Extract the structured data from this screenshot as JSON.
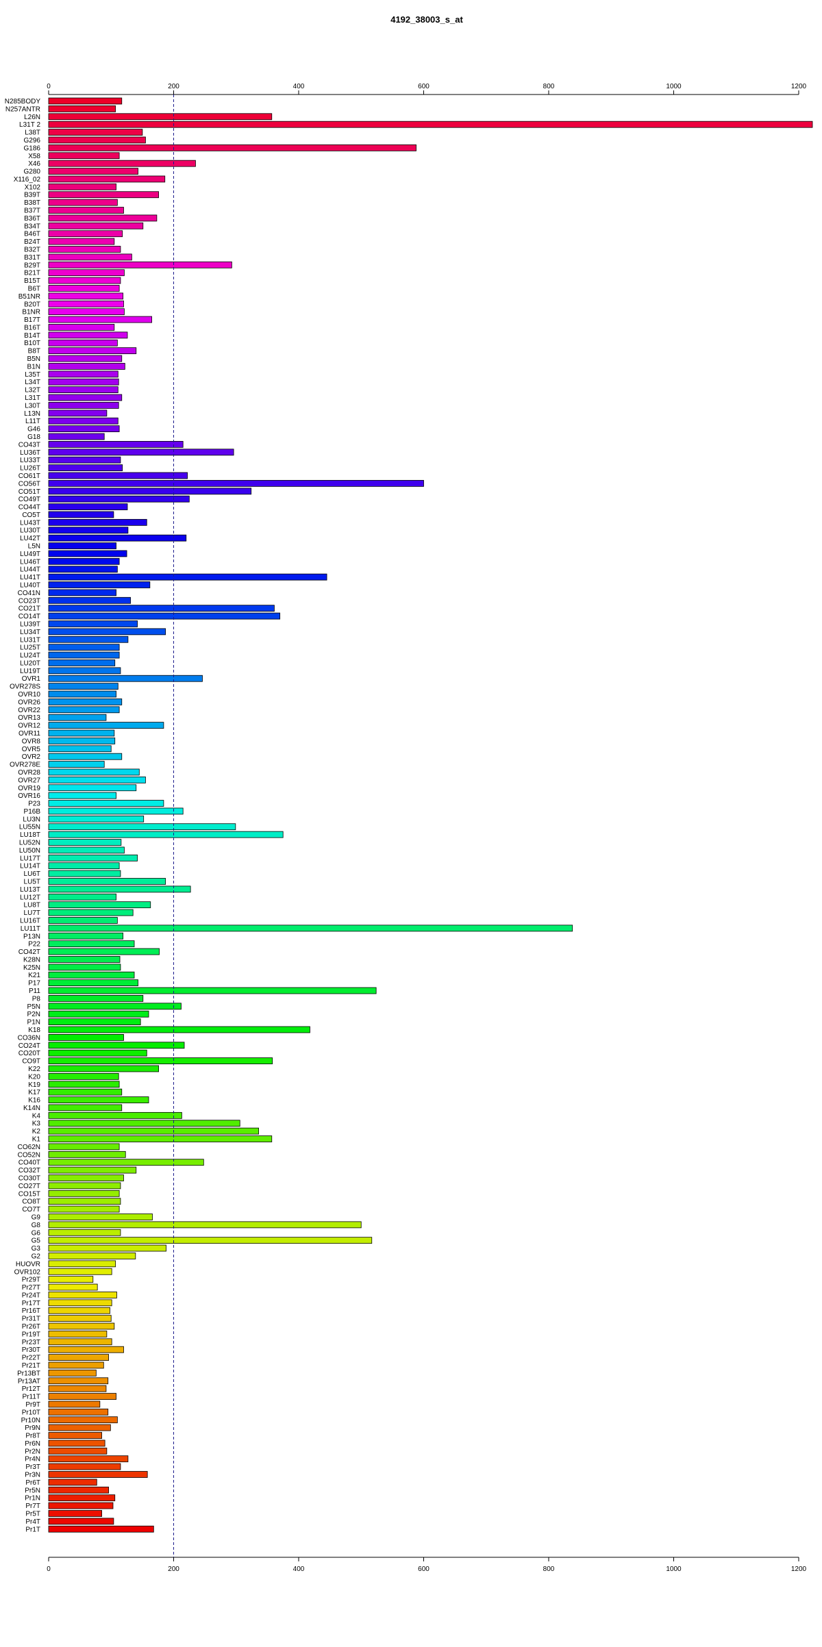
{
  "chart_data": {
    "type": "bar",
    "orientation": "horizontal",
    "title": "4192_38003_s_at",
    "xlabel": "",
    "ylabel": "",
    "xlim": [
      0,
      1200
    ],
    "xticks": [
      "0",
      "200",
      "400",
      "600",
      "800",
      "1000",
      "1200"
    ],
    "reference_line": 200,
    "grid": false,
    "legend": false,
    "color_scheme": "rainbow",
    "categories": [
      "N285BODY",
      "N257ANTR",
      "L26N",
      "L31T 2",
      "L38T",
      "G296",
      "G186",
      "X58",
      "X46",
      "G280",
      "X116_02",
      "X102",
      "B39T",
      "B38T",
      "B37T",
      "B36T",
      "B34T",
      "B46T",
      "B24T",
      "B32T",
      "B31T",
      "B29T",
      "B21T",
      "B15T",
      "B6T",
      "B51NR",
      "B20T",
      "B1NR",
      "B17T",
      "B16T",
      "B14T",
      "B10T",
      "B8T",
      "B5N",
      "B1N",
      "L35T",
      "L34T",
      "L32T",
      "L31T",
      "L30T",
      "L13N",
      "L11T",
      "G46",
      "G18",
      "CO43T",
      "LU36T",
      "LU33T",
      "LU26T",
      "CO61T",
      "CO56T",
      "CO51T",
      "CO49T",
      "CO44T",
      "CO5T",
      "LU43T",
      "LU30T",
      "LU42T",
      "L5N",
      "LU49T",
      "LU46T",
      "LU44T",
      "LU41T",
      "LU40T",
      "CO41N",
      "CO23T",
      "CO21T",
      "CO14T",
      "LU39T",
      "LU34T",
      "LU31T",
      "LU25T",
      "LU24T",
      "LU20T",
      "LU19T",
      "OVR1",
      "OVR278S",
      "OVR10",
      "OVR26",
      "OVR22",
      "OVR13",
      "OVR12",
      "OVR11",
      "OVR8",
      "OVR5",
      "OVR2",
      "OVR278E",
      "OVR28",
      "OVR27",
      "OVR19",
      "OVR16",
      "P23",
      "P16B",
      "LU3N",
      "LU55N",
      "LU18T",
      "LU52N",
      "LU50N",
      "LU17T",
      "LU14T",
      "LU6T",
      "LU5T",
      "LU13T",
      "LU12T",
      "LU8T",
      "LU7T",
      "LU16T",
      "LU11T",
      "P13N",
      "P22",
      "CO42T",
      "K28N",
      "K25N",
      "K21",
      "P17",
      "P11",
      "P8",
      "P5N",
      "P2N",
      "P1N",
      "K18",
      "CO36N",
      "CO24T",
      "CO20T",
      "CO9T",
      "K22",
      "K20",
      "K19",
      "K17",
      "K16",
      "K14N",
      "K4",
      "K3",
      "K2",
      "K1",
      "CO62N",
      "CO52N",
      "CO40T",
      "CO32T",
      "CO30T",
      "CO27T",
      "CO15T",
      "CO8T",
      "CO7T",
      "G9",
      "G8",
      "G6",
      "G5",
      "G3",
      "G2",
      "HUOVR",
      "OVR102",
      "Pr29T",
      "Pr27T",
      "Pr24T",
      "Pr17T",
      "Pr16T",
      "Pr31T",
      "Pr26T",
      "Pr19T",
      "Pr23T",
      "Pr30T",
      "Pr22T",
      "Pr21T",
      "Pr13BT",
      "Pr13AT",
      "Pr12T",
      "Pr11T",
      "Pr9T",
      "Pr10T",
      "Pr10N",
      "Pr9N",
      "Pr8T",
      "Pr6N",
      "Pr2N",
      "Pr4N",
      "Pr3T",
      "Pr3N",
      "Pr6T",
      "Pr5N",
      "Pr1N",
      "Pr7T",
      "Pr5T",
      "Pr4T",
      "Pr1T"
    ],
    "values": [
      117,
      107,
      357,
      1223,
      150,
      155,
      588,
      113,
      235,
      143,
      186,
      108,
      176,
      110,
      120,
      173,
      151,
      118,
      105,
      115,
      133,
      293,
      121,
      115,
      113,
      119,
      120,
      121,
      165,
      105,
      126,
      110,
      140,
      117,
      122,
      111,
      112,
      111,
      117,
      112,
      93,
      111,
      113,
      89,
      215,
      296,
      115,
      118,
      222,
      600,
      324,
      225,
      126,
      104,
      157,
      127,
      220,
      108,
      125,
      113,
      110,
      445,
      162,
      108,
      131,
      361,
      370,
      142,
      187,
      127,
      113,
      113,
      106,
      115,
      246,
      111,
      108,
      117,
      113,
      92,
      184,
      105,
      106,
      100,
      117,
      89,
      145,
      155,
      140,
      108,
      184,
      215,
      152,
      299,
      375,
      116,
      121,
      142,
      113,
      115,
      187,
      227,
      108,
      163,
      135,
      110,
      838,
      119,
      137,
      177,
      114,
      115,
      137,
      143,
      524,
      151,
      212,
      160,
      147,
      418,
      120,
      217,
      157,
      358,
      176,
      112,
      113,
      117,
      160,
      117,
      213,
      306,
      336,
      357,
      113,
      123,
      248,
      140,
      120,
      115,
      113,
      115,
      113,
      166,
      500,
      115,
      517,
      188,
      139,
      107,
      101,
      71,
      78,
      109,
      101,
      98,
      100,
      105,
      93,
      101,
      120,
      96,
      88,
      76,
      95,
      92,
      108,
      82,
      95,
      110,
      99,
      85,
      90,
      93,
      127,
      115,
      158,
      77,
      96,
      106,
      103,
      85,
      104,
      168
    ]
  }
}
